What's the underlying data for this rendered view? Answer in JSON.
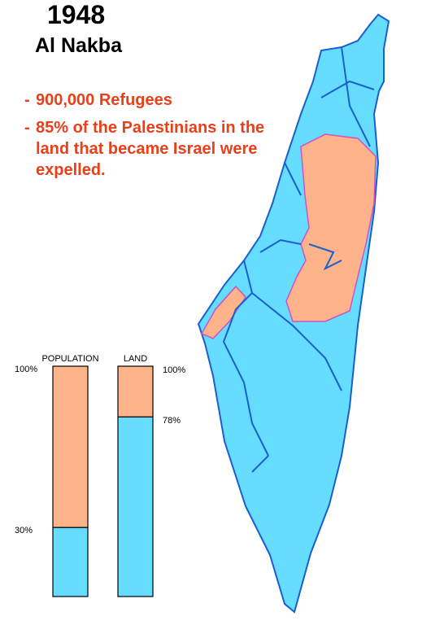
{
  "header": {
    "title": "1948",
    "subtitle": "Al Nakba"
  },
  "bullets": [
    {
      "marker": "-",
      "text": "900,000 Refugees"
    },
    {
      "marker": "-",
      "text": "85% of the Palestinians in the land that became Israel were expelled."
    }
  ],
  "chart_data": {
    "type": "stacked_bar",
    "categories": [
      "POPULATION",
      "LAND"
    ],
    "series": [
      {
        "color": "#66ddff",
        "values": [
          30,
          78
        ]
      },
      {
        "color": "#ffb38a",
        "values": [
          70,
          22
        ]
      }
    ],
    "ylim": [
      0,
      100
    ],
    "yticks": [
      {
        "value": 30,
        "label": "30%"
      },
      {
        "value": 100,
        "label": "100%"
      }
    ],
    "y2lim": [
      0,
      100
    ],
    "y2ticks": [
      {
        "value": 78,
        "label": "78%"
      },
      {
        "value": 100,
        "label": "100%"
      }
    ]
  }
}
